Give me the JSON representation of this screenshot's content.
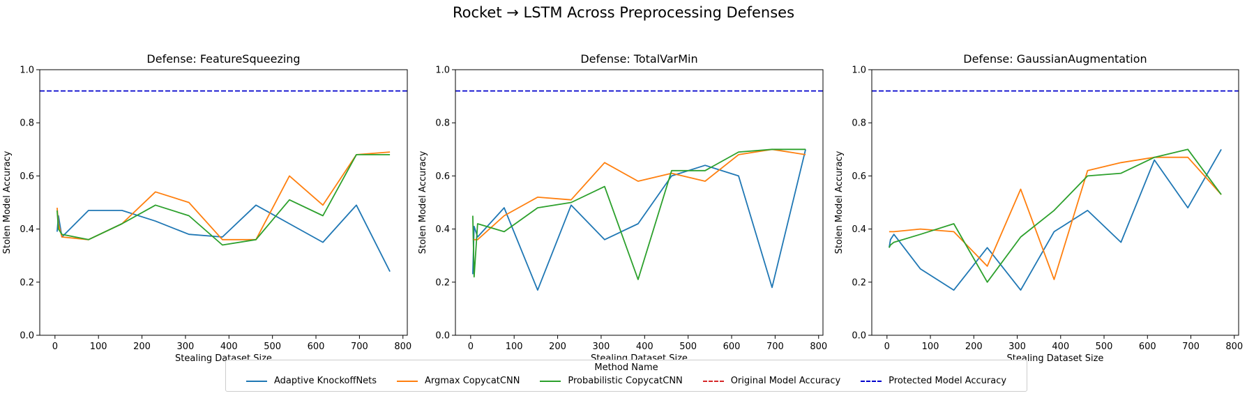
{
  "figure_title": "Rocket → LSTM Across Preprocessing Defenses",
  "legend": {
    "title": "Method Name",
    "items": [
      {
        "label": "Adaptive KnockoffNets",
        "color": "#1f77b4",
        "style": "solid"
      },
      {
        "label": "Argmax CopycatCNN",
        "color": "#ff7f0e",
        "style": "solid"
      },
      {
        "label": "Probabilistic CopycatCNN",
        "color": "#2ca02c",
        "style": "solid"
      },
      {
        "label": "Original Model Accuracy",
        "color": "#d62728",
        "style": "dashed"
      },
      {
        "label": "Protected Model Accuracy",
        "color": "#0000cc",
        "style": "dashed"
      }
    ]
  },
  "chart_data": [
    {
      "type": "line",
      "title": "Defense: FeatureSqueezing",
      "xlabel": "Stealing Dataset Size",
      "ylabel": "Stolen Model Accuracy",
      "xlim": [
        -35,
        810
      ],
      "ylim": [
        0,
        1
      ],
      "xticks": [
        0,
        100,
        200,
        300,
        400,
        500,
        600,
        700,
        800
      ],
      "yticks": [
        0.0,
        0.2,
        0.4,
        0.6,
        0.8,
        1.0
      ],
      "x": [
        5,
        8,
        16,
        77,
        154,
        231,
        308,
        385,
        462,
        539,
        616,
        693,
        770
      ],
      "series": [
        {
          "name": "Adaptive KnockoffNets",
          "color": "#1f77b4",
          "values": [
            0.39,
            0.45,
            0.37,
            0.47,
            0.47,
            0.43,
            0.38,
            0.37,
            0.49,
            0.42,
            0.35,
            0.49,
            0.24
          ]
        },
        {
          "name": "Argmax CopycatCNN",
          "color": "#ff7f0e",
          "values": [
            0.48,
            0.42,
            0.37,
            0.36,
            0.42,
            0.54,
            0.5,
            0.36,
            0.36,
            0.6,
            0.49,
            0.68,
            0.69
          ]
        },
        {
          "name": "Probabilistic CopycatCNN",
          "color": "#2ca02c",
          "values": [
            0.47,
            0.4,
            0.38,
            0.36,
            0.42,
            0.49,
            0.45,
            0.34,
            0.36,
            0.51,
            0.45,
            0.68,
            0.68
          ]
        }
      ],
      "hlines": [
        {
          "name": "Protected Model Accuracy",
          "value": 0.92,
          "color": "#0000cc",
          "style": "dashed"
        }
      ]
    },
    {
      "type": "line",
      "title": "Defense: TotalVarMin",
      "xlabel": "Stealing Dataset Size",
      "ylabel": "Stolen Model Accuracy",
      "xlim": [
        -35,
        810
      ],
      "ylim": [
        0,
        1
      ],
      "xticks": [
        0,
        100,
        200,
        300,
        400,
        500,
        600,
        700,
        800
      ],
      "yticks": [
        0.0,
        0.2,
        0.4,
        0.6,
        0.8,
        1.0
      ],
      "x": [
        5,
        8,
        16,
        77,
        154,
        231,
        308,
        385,
        462,
        539,
        616,
        693,
        770
      ],
      "series": [
        {
          "name": "Adaptive KnockoffNets",
          "color": "#1f77b4",
          "values": [
            0.23,
            0.41,
            0.37,
            0.48,
            0.17,
            0.49,
            0.36,
            0.42,
            0.6,
            0.64,
            0.6,
            0.18,
            0.7
          ]
        },
        {
          "name": "Argmax CopycatCNN",
          "color": "#ff7f0e",
          "values": [
            0.36,
            0.36,
            0.36,
            0.45,
            0.52,
            0.51,
            0.65,
            0.58,
            0.61,
            0.58,
            0.68,
            0.7,
            0.68
          ]
        },
        {
          "name": "Probabilistic CopycatCNN",
          "color": "#2ca02c",
          "values": [
            0.45,
            0.22,
            0.42,
            0.39,
            0.48,
            0.5,
            0.56,
            0.21,
            0.62,
            0.62,
            0.69,
            0.7,
            0.7
          ]
        }
      ],
      "hlines": [
        {
          "name": "Protected Model Accuracy",
          "value": 0.92,
          "color": "#0000cc",
          "style": "dashed"
        }
      ]
    },
    {
      "type": "line",
      "title": "Defense: GaussianAugmentation",
      "xlabel": "Stealing Dataset Size",
      "ylabel": "Stolen Model Accuracy",
      "xlim": [
        -35,
        810
      ],
      "ylim": [
        0,
        1
      ],
      "xticks": [
        0,
        100,
        200,
        300,
        400,
        500,
        600,
        700,
        800
      ],
      "yticks": [
        0.0,
        0.2,
        0.4,
        0.6,
        0.8,
        1.0
      ],
      "x": [
        5,
        8,
        16,
        77,
        154,
        231,
        308,
        385,
        462,
        539,
        616,
        693,
        770
      ],
      "series": [
        {
          "name": "Adaptive KnockoffNets",
          "color": "#1f77b4",
          "values": [
            0.33,
            0.36,
            0.38,
            0.25,
            0.17,
            0.33,
            0.17,
            0.39,
            0.47,
            0.35,
            0.66,
            0.48,
            0.7
          ]
        },
        {
          "name": "Argmax CopycatCNN",
          "color": "#ff7f0e",
          "values": [
            0.39,
            0.39,
            0.39,
            0.4,
            0.39,
            0.26,
            0.55,
            0.21,
            0.62,
            0.65,
            0.67,
            0.67,
            0.53
          ]
        },
        {
          "name": "Probabilistic CopycatCNN",
          "color": "#2ca02c",
          "values": [
            0.33,
            0.34,
            0.35,
            0.38,
            0.42,
            0.2,
            0.37,
            0.47,
            0.6,
            0.61,
            0.67,
            0.7,
            0.53
          ]
        }
      ],
      "hlines": [
        {
          "name": "Protected Model Accuracy",
          "value": 0.92,
          "color": "#0000cc",
          "style": "dashed"
        }
      ]
    }
  ]
}
